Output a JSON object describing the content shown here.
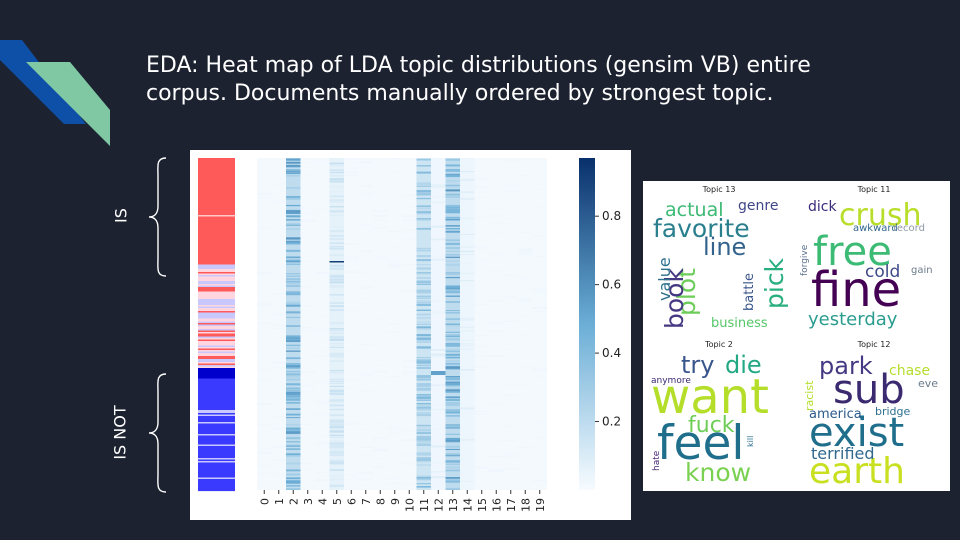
{
  "slide": {
    "title_line1": "EDA: Heat map of LDA topic distributions (gensim VB)  entire",
    "title_line2": "corpus. Documents manually ordered by strongest topic.",
    "label_is": "IS",
    "label_is_not": "IS NOT"
  },
  "colors": {
    "background": "#1c2230",
    "logo_blue": "#0e4fa8",
    "logo_green": "#7fc8a3",
    "is_class": "#ff5a5a",
    "is_not_class": "#3a3aff",
    "heat_low": "#f7fbff",
    "heat_high": "#08306b"
  },
  "chart_data": [
    {
      "type": "heatmap",
      "x_tick_labels": [
        "0",
        "1",
        "2",
        "3",
        "4",
        "5",
        "6",
        "7",
        "8",
        "9",
        "10",
        "11",
        "12",
        "13",
        "14",
        "15",
        "16",
        "17",
        "18",
        "19"
      ],
      "colorbar_ticks": [
        0.2,
        0.4,
        0.6,
        0.8
      ],
      "colorbar_range": [
        0.0,
        0.97
      ],
      "topic_mean_weight": [
        0.02,
        0.02,
        0.4,
        0.02,
        0.02,
        0.12,
        0.02,
        0.02,
        0.02,
        0.02,
        0.02,
        0.3,
        0.06,
        0.4,
        0.07,
        0.02,
        0.02,
        0.02,
        0.02,
        0.02
      ],
      "class_strip": [
        "IS",
        "IS NOT"
      ],
      "legend": "colorbar right"
    },
    {
      "type": "wordcloud",
      "panels": [
        {
          "title": "Topic 13",
          "words": [
            {
              "w": "favorite",
              "color": "#2a7f8e"
            },
            {
              "w": "line",
              "color": "#33638d"
            },
            {
              "w": "actual",
              "color": "#3cba74"
            },
            {
              "w": "genre",
              "color": "#404788"
            },
            {
              "w": "plot",
              "color": "#6ccd5a"
            },
            {
              "w": "pick",
              "color": "#29af7f"
            },
            {
              "w": "book",
              "color": "#453781"
            },
            {
              "w": "value",
              "color": "#2d708e"
            },
            {
              "w": "battle",
              "color": "#39568c"
            },
            {
              "w": "business",
              "color": "#55c667"
            }
          ]
        },
        {
          "title": "Topic 11",
          "words": [
            {
              "w": "crush",
              "color": "#b8de29"
            },
            {
              "w": "free",
              "color": "#3cbb75"
            },
            {
              "w": "fine",
              "color": "#440154"
            },
            {
              "w": "dick",
              "color": "#3a2a7a"
            },
            {
              "w": "cold",
              "color": "#3e4a89"
            },
            {
              "w": "yesterday",
              "color": "#2a9d8f"
            },
            {
              "w": "awkward",
              "color": "#31688e"
            },
            {
              "w": "record",
              "color": "#8d9aa6"
            },
            {
              "w": "forgive",
              "color": "#5a6e8c"
            },
            {
              "w": "gain",
              "color": "#6b7b8c"
            }
          ]
        },
        {
          "title": "Topic 2",
          "words": [
            {
              "w": "want",
              "color": "#b5de2b"
            },
            {
              "w": "feel",
              "color": "#1f6e8c"
            },
            {
              "w": "try",
              "color": "#39568c"
            },
            {
              "w": "die",
              "color": "#23a884"
            },
            {
              "w": "fuck",
              "color": "#6ece58"
            },
            {
              "w": "know",
              "color": "#7ad151"
            },
            {
              "w": "anymore",
              "color": "#3b2a70"
            },
            {
              "w": "hate",
              "color": "#482878"
            },
            {
              "w": "kill",
              "color": "#2d708e"
            }
          ]
        },
        {
          "title": "Topic 12",
          "words": [
            {
              "w": "park",
              "color": "#443983"
            },
            {
              "w": "sub",
              "color": "#3b2a70"
            },
            {
              "w": "exist",
              "color": "#1f6e8c"
            },
            {
              "w": "earth",
              "color": "#c8e020"
            },
            {
              "w": "chase",
              "color": "#b5de2b"
            },
            {
              "w": "eve",
              "color": "#6b7b8c"
            },
            {
              "w": "america",
              "color": "#2a5a8c"
            },
            {
              "w": "bridge",
              "color": "#2d708e"
            },
            {
              "w": "terrified",
              "color": "#31688e"
            },
            {
              "w": "racist",
              "color": "#b5de2b"
            }
          ]
        }
      ]
    }
  ]
}
